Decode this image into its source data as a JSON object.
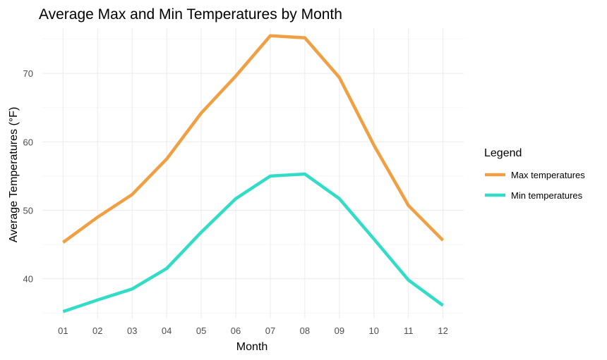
{
  "chart_data": {
    "type": "line",
    "title": "Average Max and Min Temperatures by Month",
    "xlabel": "Month",
    "ylabel": "Average Temperatures (°F)",
    "categories": [
      "01",
      "02",
      "03",
      "04",
      "05",
      "06",
      "07",
      "08",
      "09",
      "10",
      "11",
      "12"
    ],
    "y_ticks": [
      40,
      50,
      60,
      70
    ],
    "y_tick_labels": [
      "40",
      "50",
      "60",
      "70"
    ],
    "ylim": [
      34.2,
      76.6
    ],
    "grid": true,
    "legend": {
      "title": "Legend",
      "placement": "right"
    },
    "series": [
      {
        "name": "Max temperatures",
        "color": "#F0A043",
        "values": [
          45.3,
          49.0,
          52.3,
          57.5,
          64.2,
          69.6,
          75.5,
          75.2,
          69.4,
          59.5,
          50.7,
          45.6
        ]
      },
      {
        "name": "Min temperatures",
        "color": "#33DCC6",
        "values": [
          35.2,
          36.9,
          38.5,
          41.5,
          46.8,
          51.7,
          55.0,
          55.3,
          51.7,
          45.8,
          39.8,
          36.1
        ]
      }
    ]
  }
}
